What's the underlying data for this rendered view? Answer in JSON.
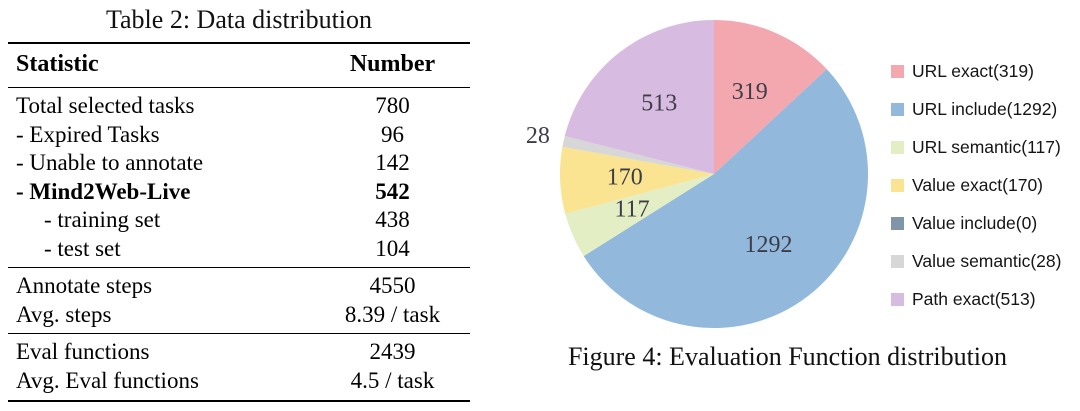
{
  "table": {
    "caption": "Table 2: Data distribution",
    "columns": [
      "Statistic",
      "Number"
    ],
    "rows": [
      {
        "label": "Total selected tasks",
        "value": "780",
        "bold": false,
        "indent": 0,
        "rule_above": false
      },
      {
        "label": "- Expired Tasks",
        "value": "96",
        "bold": false,
        "indent": 0,
        "rule_above": false
      },
      {
        "label": "- Unable to annotate",
        "value": "142",
        "bold": false,
        "indent": 0,
        "rule_above": false
      },
      {
        "label": "- Mind2Web-Live",
        "value": "542",
        "bold": true,
        "indent": 0,
        "rule_above": false
      },
      {
        "label": "- training set",
        "value": "438",
        "bold": false,
        "indent": 1,
        "rule_above": false
      },
      {
        "label": "- test set",
        "value": "104",
        "bold": false,
        "indent": 1,
        "rule_above": false
      },
      {
        "label": "Annotate steps",
        "value": "4550",
        "bold": false,
        "indent": 0,
        "rule_above": true
      },
      {
        "label": "Avg. steps",
        "value": "8.39 / task",
        "bold": false,
        "indent": 0,
        "rule_above": false
      },
      {
        "label": "Eval functions",
        "value": "2439",
        "bold": false,
        "indent": 0,
        "rule_above": true
      },
      {
        "label": "Avg. Eval functions",
        "value": "4.5 / task",
        "bold": false,
        "indent": 0,
        "rule_above": false
      }
    ]
  },
  "figure": {
    "caption": "Figure 4: Evaluation Function distribution"
  },
  "chart_data": {
    "type": "pie",
    "title": "Figure 4: Evaluation Function distribution",
    "labels": [
      "URL exact",
      "URL include",
      "URL semantic",
      "Value exact",
      "Value include",
      "Value semantic",
      "Path exact"
    ],
    "values": [
      319,
      1292,
      117,
      170,
      0,
      28,
      513
    ],
    "total": 2439,
    "colors": [
      "#F3A8B0",
      "#92B9DC",
      "#E3EEC5",
      "#FAE491",
      "#8195A8",
      "#D7D7D7",
      "#D8BBE1"
    ],
    "legend_entries": [
      "URL exact(319)",
      "URL include(1292)",
      "URL semantic(117)",
      "Value exact(170)",
      "Value include(0)",
      "Value semantic(28)",
      "Path exact(513)"
    ],
    "legend_position": "right",
    "start_angle_deg": 0,
    "direction": "clockwise",
    "slice_label_color": "#3d3d48"
  }
}
